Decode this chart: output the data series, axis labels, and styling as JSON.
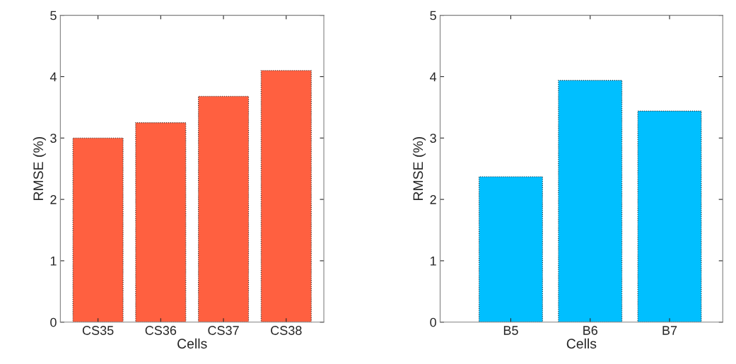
{
  "chart_data": [
    {
      "type": "bar",
      "categories": [
        "CS35",
        "CS36",
        "CS37",
        "CS38"
      ],
      "values": [
        3.0,
        3.25,
        3.68,
        4.1
      ],
      "color": "#ff6040",
      "xlabel": "Cells",
      "ylabel": "RMSE (%)",
      "ylim": [
        0,
        5
      ],
      "yticks": [
        0,
        1,
        2,
        3,
        4,
        5
      ],
      "grid": false
    },
    {
      "type": "bar",
      "categories": [
        "B5",
        "B6",
        "B7"
      ],
      "values": [
        2.37,
        3.94,
        3.44
      ],
      "color": "#00bfff",
      "xlabel": "Cells",
      "ylabel": "RMSE (%)",
      "ylim": [
        0,
        5
      ],
      "yticks": [
        0,
        1,
        2,
        3,
        4,
        5
      ],
      "grid": false
    }
  ]
}
